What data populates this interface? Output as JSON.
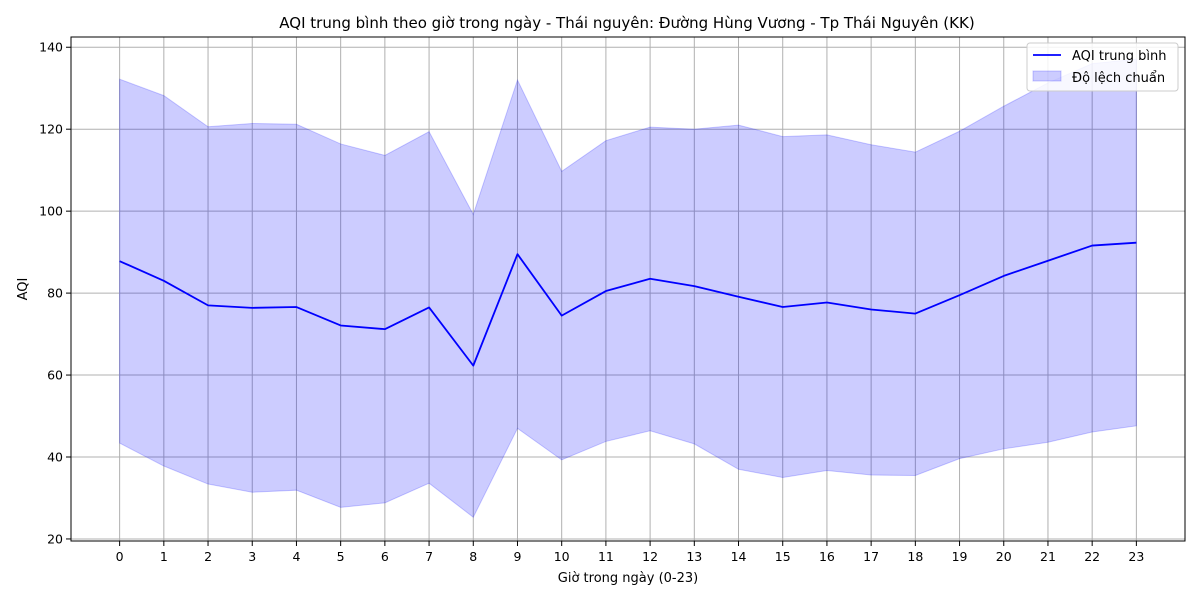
{
  "chart_data": {
    "type": "line",
    "title": "AQI trung bình theo giờ trong ngày - Thái nguyên: Đường Hùng Vương - Tp Thái Nguyên (KK)",
    "xlabel": "Giờ trong ngày (0-23)",
    "ylabel": "AQI",
    "x": [
      0,
      1,
      2,
      3,
      4,
      5,
      6,
      7,
      8,
      9,
      10,
      11,
      12,
      13,
      14,
      15,
      16,
      17,
      18,
      19,
      20,
      21,
      22,
      23
    ],
    "xlim": [
      -1.1,
      24.1
    ],
    "ylim": [
      19.5,
      142.5
    ],
    "yticks": [
      20,
      40,
      60,
      80,
      100,
      120,
      140
    ],
    "grid": true,
    "legend_position": "top-right",
    "series": [
      {
        "name": "AQI trung bình",
        "values": [
          87.8,
          83.0,
          77.0,
          76.4,
          76.6,
          72.1,
          71.2,
          76.5,
          62.3,
          89.5,
          74.5,
          80.5,
          83.5,
          81.7,
          79.1,
          76.6,
          77.7,
          76.0,
          75.0,
          79.5,
          84.2,
          87.9,
          91.6,
          92.3
        ],
        "color": "#0000ff"
      },
      {
        "name": "Độ lệch chuẩn",
        "type": "band",
        "upper": [
          132.2,
          128.2,
          120.6,
          121.4,
          121.2,
          116.4,
          113.6,
          119.4,
          99.2,
          132.0,
          109.7,
          117.2,
          120.5,
          120.0,
          121.0,
          118.2,
          118.6,
          116.2,
          114.4,
          119.5,
          125.6,
          131.3,
          136.0,
          137.1
        ],
        "lower": [
          43.4,
          37.8,
          33.4,
          31.4,
          31.9,
          27.7,
          28.8,
          33.6,
          25.3,
          47.0,
          39.3,
          43.8,
          46.4,
          43.2,
          37.0,
          35.0,
          36.7,
          35.6,
          35.5,
          39.6,
          42.0,
          43.6,
          46.1,
          47.6
        ],
        "color": "#0000ff"
      }
    ]
  }
}
